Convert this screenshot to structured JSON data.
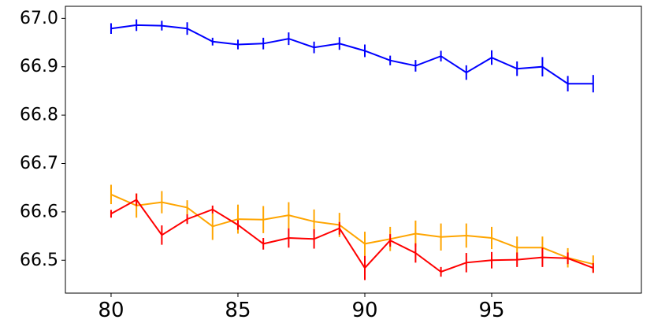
{
  "chart_data": {
    "type": "line",
    "title": "",
    "xlabel": "",
    "ylabel": "",
    "xlim": [
      78.2,
      100.9
    ],
    "ylim": [
      66.432,
      67.025
    ],
    "xticks": [
      80,
      85,
      90,
      95
    ],
    "xtick_labels": [
      "80",
      "85",
      "90",
      "95"
    ],
    "yticks": [
      66.5,
      66.6,
      66.7,
      66.8,
      66.9,
      67.0
    ],
    "ytick_labels": [
      "66.5",
      "66.6",
      "66.7",
      "66.8",
      "66.9",
      "67.0"
    ],
    "grid": false,
    "legend": null,
    "x": [
      80,
      81,
      82,
      83,
      84,
      85,
      86,
      87,
      88,
      89,
      90,
      91,
      92,
      93,
      94,
      95,
      96,
      97,
      98,
      99
    ],
    "series": [
      {
        "color": "#0000ff",
        "values": [
          66.979,
          66.986,
          66.985,
          66.979,
          66.952,
          66.946,
          66.948,
          66.958,
          66.94,
          66.948,
          66.933,
          66.913,
          66.902,
          66.922,
          66.888,
          66.919,
          66.896,
          66.9,
          66.865,
          66.865
        ],
        "errors": [
          0.011,
          0.012,
          0.01,
          0.013,
          0.008,
          0.01,
          0.012,
          0.013,
          0.012,
          0.013,
          0.013,
          0.01,
          0.012,
          0.011,
          0.015,
          0.015,
          0.015,
          0.02,
          0.016,
          0.018
        ]
      },
      {
        "color": "#ffa500",
        "values": [
          66.636,
          66.613,
          66.62,
          66.609,
          66.57,
          66.585,
          66.584,
          66.593,
          66.58,
          66.573,
          66.534,
          66.544,
          66.555,
          66.548,
          66.551,
          66.546,
          66.526,
          66.526,
          66.505,
          66.492
        ],
        "errors": [
          0.02,
          0.025,
          0.023,
          0.015,
          0.028,
          0.03,
          0.028,
          0.027,
          0.025,
          0.025,
          0.025,
          0.025,
          0.027,
          0.028,
          0.025,
          0.023,
          0.023,
          0.023,
          0.02,
          0.018
        ]
      },
      {
        "color": "#ff0000",
        "values": [
          66.596,
          66.625,
          66.552,
          66.585,
          66.605,
          66.573,
          66.534,
          66.546,
          66.544,
          66.566,
          66.484,
          66.541,
          66.515,
          66.476,
          66.495,
          66.5,
          66.501,
          66.506,
          66.504,
          66.484
        ],
        "errors": [
          0.008,
          0.013,
          0.02,
          0.01,
          0.008,
          0.01,
          0.012,
          0.02,
          0.02,
          0.013,
          0.025,
          0.013,
          0.02,
          0.01,
          0.02,
          0.017,
          0.015,
          0.02,
          0.012,
          0.01
        ]
      }
    ]
  }
}
